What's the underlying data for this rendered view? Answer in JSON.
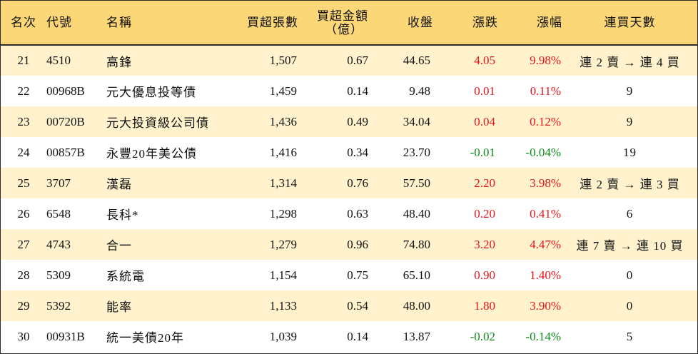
{
  "headers": {
    "rank": "名次",
    "code": "代號",
    "name": "名稱",
    "net_buy_lots": "買超張數",
    "net_buy_amount_line1": "買超金額",
    "net_buy_amount_line2": "（億）",
    "close": "收盤",
    "change": "漲跌",
    "change_pct": "漲幅",
    "consecutive_days": "連買天數"
  },
  "colors": {
    "header_bg": "#fbd777",
    "stripe_bg": "#fff2cc",
    "up": "#e8141c",
    "down": "#0f8a1c"
  },
  "rows": [
    {
      "rank": "21",
      "code": "4510",
      "name": "高鋒",
      "lots": "1,507",
      "amount": "0.67",
      "close": "44.65",
      "change": "4.05",
      "pct": "9.98%",
      "days": "連 2 賣 → 連 4 買",
      "dir": "up"
    },
    {
      "rank": "22",
      "code": "00968B",
      "name": "元大優息投等債",
      "lots": "1,459",
      "amount": "0.14",
      "close": "9.48",
      "change": "0.01",
      "pct": "0.11%",
      "days": "9",
      "dir": "up"
    },
    {
      "rank": "23",
      "code": "00720B",
      "name": "元大投資級公司債",
      "lots": "1,436",
      "amount": "0.49",
      "close": "34.04",
      "change": "0.04",
      "pct": "0.12%",
      "days": "9",
      "dir": "up"
    },
    {
      "rank": "24",
      "code": "00857B",
      "name": "永豐20年美公債",
      "lots": "1,416",
      "amount": "0.34",
      "close": "23.70",
      "change": "-0.01",
      "pct": "-0.04%",
      "days": "19",
      "dir": "down"
    },
    {
      "rank": "25",
      "code": "3707",
      "name": "漢磊",
      "lots": "1,314",
      "amount": "0.76",
      "close": "57.50",
      "change": "2.20",
      "pct": "3.98%",
      "days": "連 2 賣 → 連 3 買",
      "dir": "up"
    },
    {
      "rank": "26",
      "code": "6548",
      "name": "長科*",
      "lots": "1,298",
      "amount": "0.63",
      "close": "48.40",
      "change": "0.20",
      "pct": "0.41%",
      "days": "6",
      "dir": "up"
    },
    {
      "rank": "27",
      "code": "4743",
      "name": "合一",
      "lots": "1,279",
      "amount": "0.96",
      "close": "74.80",
      "change": "3.20",
      "pct": "4.47%",
      "days": "連 7 賣 → 連 10 買",
      "dir": "up"
    },
    {
      "rank": "28",
      "code": "5309",
      "name": "系統電",
      "lots": "1,154",
      "amount": "0.75",
      "close": "65.10",
      "change": "0.90",
      "pct": "1.40%",
      "days": "0",
      "dir": "up"
    },
    {
      "rank": "29",
      "code": "5392",
      "name": "能率",
      "lots": "1,133",
      "amount": "0.54",
      "close": "48.00",
      "change": "1.80",
      "pct": "3.90%",
      "days": "0",
      "dir": "up"
    },
    {
      "rank": "30",
      "code": "00931B",
      "name": "統一美債20年",
      "lots": "1,039",
      "amount": "0.14",
      "close": "13.87",
      "change": "-0.02",
      "pct": "-0.14%",
      "days": "5",
      "dir": "down"
    }
  ]
}
